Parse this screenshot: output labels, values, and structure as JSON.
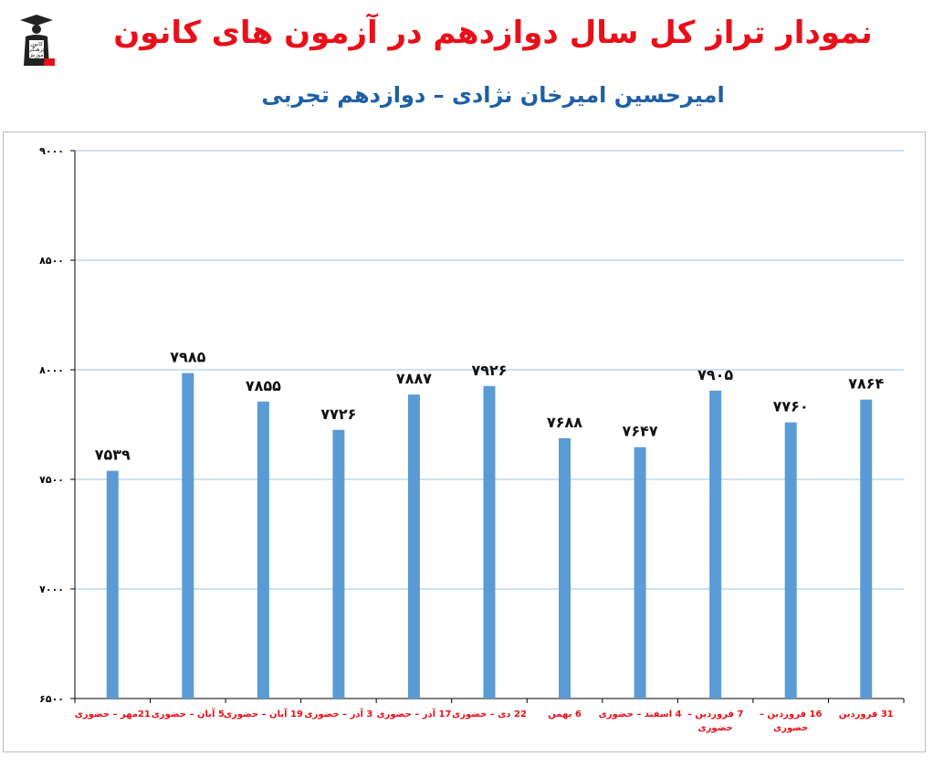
{
  "title": "نمودار تراز کل سال دوازدهم در آزمون های کانون",
  "subtitle": "امیرحسین امیرخان نژادی – دوازدهم تجربی",
  "logo": {
    "icon": "graduate-figure-icon",
    "lines": [
      "کانون",
      "فرهنگی",
      "آموزش",
      "قلم چی"
    ]
  },
  "colors": {
    "title": "#e8101a",
    "subtitle": "#1f5fa6",
    "bar": "#5b9bd5",
    "grid": "#9cc3e3",
    "axis": "#000000",
    "xtick": "#e8101a"
  },
  "chart_data": {
    "type": "bar",
    "categories": [
      "21مهر – حضوری",
      "5 آبان – حضوری",
      "19 آبان – حضوری",
      "3 آذر – حضوری",
      "17 آذر – حضوری",
      "22 دی – حضوری",
      "6 بهمن",
      "4 اسفند – حضوری",
      "7 فروردین – حضوری",
      "16 فروردین – حضوری",
      "31 فروردین"
    ],
    "values": [
      7539,
      7985,
      7855,
      7726,
      7887,
      7926,
      7688,
      7647,
      7905,
      7760,
      7864
    ],
    "data_labels": [
      "۷۵۳۹",
      "۷۹۸۵",
      "۷۸۵۵",
      "۷۷۲۶",
      "۷۸۸۷",
      "۷۹۲۶",
      "۷۶۸۸",
      "۷۶۴۷",
      "۷۹۰۵",
      "۷۷۶۰",
      "۷۸۶۴"
    ],
    "yticks": [
      6500,
      7000,
      7500,
      8000,
      8500,
      9000
    ],
    "ytick_labels": [
      "۶۵۰۰",
      "۷۰۰۰",
      "۷۵۰۰",
      "۸۰۰۰",
      "۸۵۰۰",
      "۹۰۰۰"
    ],
    "ylim": [
      6500,
      9000
    ],
    "grid": true,
    "legend": "none"
  }
}
